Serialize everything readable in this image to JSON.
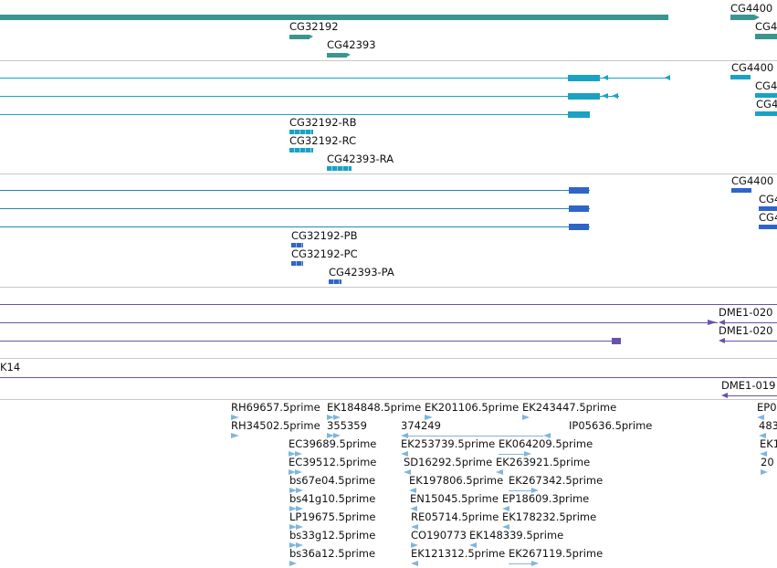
{
  "colors": {
    "gene": "#3a9590",
    "transcript_rb": "#19a2c4",
    "transcript_pb": "#2f65c8",
    "rna": "#6a52a8",
    "est": "#7fb6dc",
    "separator": "#c8c8c8"
  },
  "gene_track": {
    "labels": [
      "CG32192",
      "CG42393",
      "CG4400"
    ]
  },
  "transcript_track_1": {
    "labels": [
      "CG32192-RB",
      "CG32192-RC",
      "CG42393-RA",
      "CG4400",
      "CG4",
      "CG4"
    ]
  },
  "transcript_track_2": {
    "labels": [
      "CG32192-PB",
      "CG32192-PC",
      "CG42393-PA",
      "CG4400",
      "CG4",
      "CG4"
    ]
  },
  "rna_track": {
    "labels": [
      "DME1-020",
      "DME1-020"
    ]
  },
  "k14_track": {
    "label": "K14",
    "labels": [
      "DME1-019"
    ]
  },
  "est_track": {
    "labels": [
      "RH69657.5prime",
      "EK184848.5prime",
      "EK201106.5prime",
      "EK243447.5prime",
      "EP0",
      "RH34502.5prime",
      "355359",
      "374249",
      "IP05636.5prime",
      "483",
      "EC39689.5prime",
      "EK253739.5prime",
      "EK064209.5prime",
      "EK1",
      "EC39512.5prime",
      "SD16292.5prime",
      "EK263921.5prime",
      "20",
      "bs67e04.5prime",
      "EK197806.5prime",
      "EK267342.5prime",
      "bs41g10.5prime",
      "EN15045.5prime",
      "EP18609.3prime",
      "LP19675.5prime",
      "RE05714.5prime",
      "EK178232.5prime",
      "bs33g12.5prime",
      "CO190773",
      "EK148339.5prime",
      "bs36a12.5prime",
      "EK121312.5prime",
      "EK267119.5prime"
    ]
  }
}
